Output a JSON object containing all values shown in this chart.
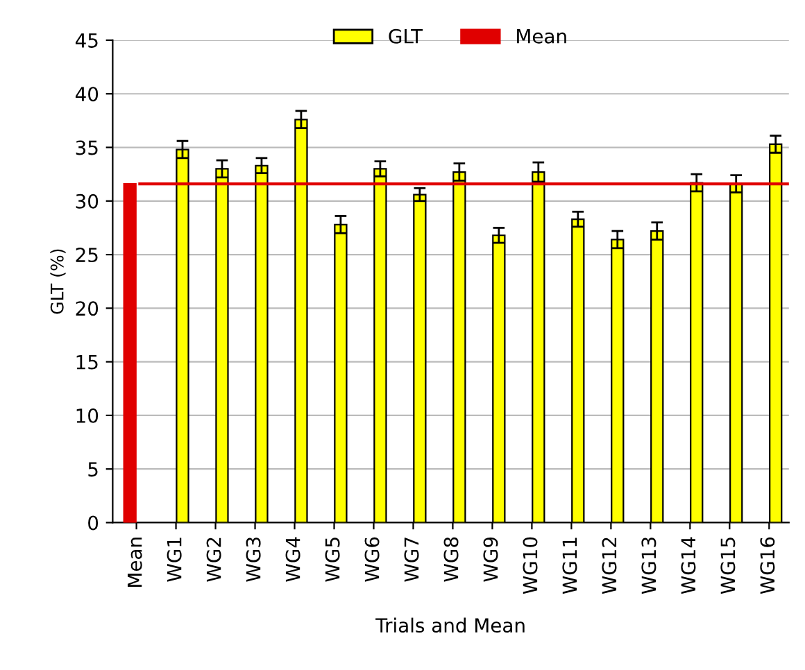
{
  "chart_data": {
    "type": "bar",
    "ylabel": "GLT (%)",
    "xlabel": "Trials and Mean",
    "categories": [
      "Mean",
      "WG1",
      "WG2",
      "WG3",
      "WG4",
      "WG5",
      "WG6",
      "WG7",
      "WG8",
      "WG9",
      "WG10",
      "WG11",
      "WG12",
      "WG13",
      "WG14",
      "WG15",
      "WG16"
    ],
    "series": [
      {
        "name": "GLT",
        "color": "#ffff00",
        "values": [
          null,
          34.8,
          33.0,
          33.3,
          37.6,
          27.8,
          33.0,
          30.6,
          32.7,
          26.8,
          32.7,
          28.3,
          26.4,
          27.2,
          31.7,
          31.6,
          35.3
        ],
        "errors": [
          null,
          0.8,
          0.8,
          0.7,
          0.8,
          0.8,
          0.7,
          0.6,
          0.8,
          0.7,
          0.9,
          0.7,
          0.8,
          0.8,
          0.8,
          0.8,
          0.8
        ]
      },
      {
        "name": "Mean",
        "color": "#e00000",
        "values": [
          31.6,
          null,
          null,
          null,
          null,
          null,
          null,
          null,
          null,
          null,
          null,
          null,
          null,
          null,
          null,
          null,
          null
        ]
      }
    ],
    "ref_lines": [
      {
        "axis": "y",
        "value": 31.6,
        "color": "#e00000"
      }
    ],
    "ylim": [
      0,
      45
    ],
    "yticks": [
      0,
      5,
      10,
      15,
      20,
      25,
      30,
      35,
      40,
      45
    ],
    "grid": "y",
    "legend": "top"
  }
}
